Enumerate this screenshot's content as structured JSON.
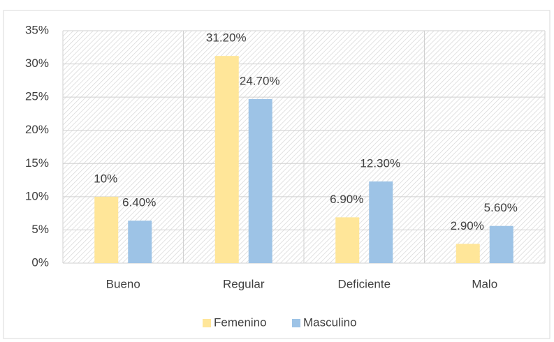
{
  "chart_data": {
    "type": "bar",
    "categories": [
      "Bueno",
      "Regular",
      "Deficiente",
      "Malo"
    ],
    "series": [
      {
        "name": "Femenino",
        "color": "#FFE699",
        "values": [
          10,
          31.2,
          6.9,
          2.9
        ],
        "value_labels": [
          "10%",
          "31.20%",
          "6.90%",
          "2.90%"
        ]
      },
      {
        "name": "Masculino",
        "color": "#9DC3E6",
        "values": [
          6.4,
          24.7,
          12.3,
          5.6
        ],
        "value_labels": [
          "6.40%",
          "24.70%",
          "12.30%",
          "5.60%"
        ]
      }
    ],
    "ylim": [
      0,
      35
    ],
    "yticks": [
      {
        "value": 0,
        "label": "0%"
      },
      {
        "value": 5,
        "label": "5%"
      },
      {
        "value": 10,
        "label": "10%"
      },
      {
        "value": 15,
        "label": "15%"
      },
      {
        "value": 20,
        "label": "20%"
      },
      {
        "value": 25,
        "label": "25%"
      },
      {
        "value": 30,
        "label": "30%"
      },
      {
        "value": 35,
        "label": "35%"
      }
    ],
    "grid": true,
    "legend": "bottom"
  }
}
